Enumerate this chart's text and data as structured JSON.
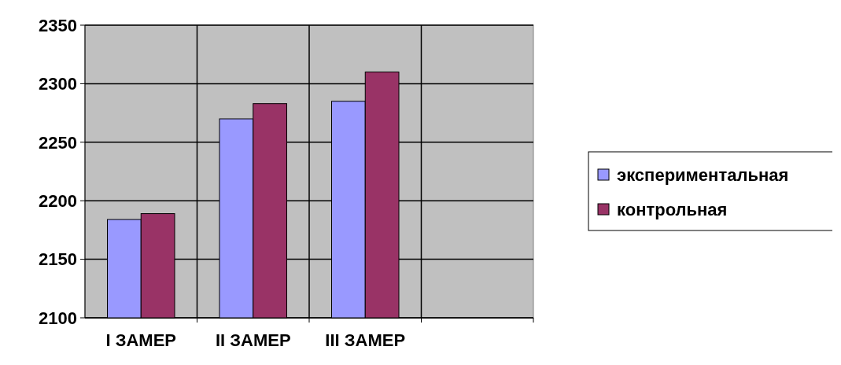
{
  "chart_data": {
    "type": "bar",
    "categories": [
      "I ЗАМЕР",
      "II ЗАМЕР",
      "III ЗАМЕР",
      null
    ],
    "series": [
      {
        "name": "экспериментальная",
        "color": "#9999ff",
        "values": [
          2184,
          2270,
          2285,
          null
        ]
      },
      {
        "name": "контрольная",
        "color": "#993366",
        "values": [
          2189,
          2283,
          2310,
          null
        ]
      }
    ],
    "ylim": [
      2100,
      2350
    ],
    "yticks": [
      2100,
      2150,
      2200,
      2250,
      2300,
      2350
    ],
    "grid": true,
    "legend": "right"
  }
}
